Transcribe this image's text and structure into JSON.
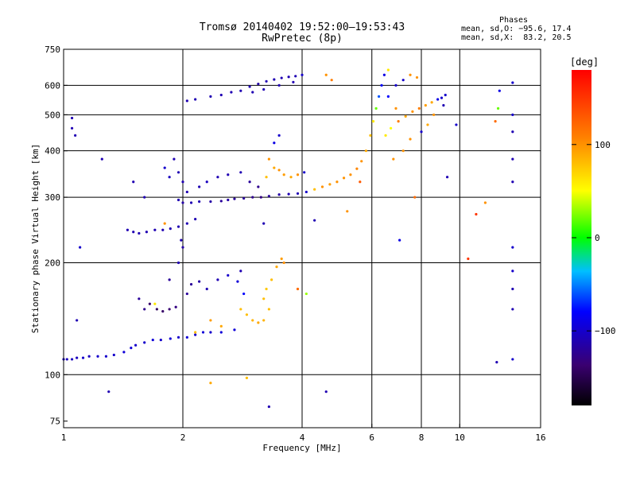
{
  "header": {
    "title": "Tromsø 20140402 19:52:00–19:53:43",
    "subtitle": "RwPretec (8p)"
  },
  "phase_info": {
    "heading": "Phases",
    "line1": "mean, sd,O: −95.6, 17.4",
    "line2": "mean, sd,X:  83.2, 20.5"
  },
  "colorbar": {
    "unit": "[deg]",
    "ticks": [
      "100",
      "0",
      "−100"
    ],
    "tick_values": [
      100,
      0,
      -100
    ],
    "range": [
      -180,
      180
    ]
  },
  "chart_data": {
    "type": "scatter",
    "title": "Tromsø 20140402 19:52:00–19:53:43",
    "subtitle": "RwPretec (8p)",
    "xlabel": "Frequency [MHz]",
    "ylabel": "Stationary phase Virtual Height [km]",
    "xscale": "log",
    "yscale": "log",
    "xlim": [
      1,
      16
    ],
    "ylim": [
      72,
      750
    ],
    "xticks": [
      1,
      2,
      4,
      6,
      8,
      10,
      16
    ],
    "xtick_labels": [
      "1",
      "2",
      "4",
      "6",
      "8",
      "10",
      "16"
    ],
    "yticks": [
      75,
      100,
      200,
      300,
      400,
      500,
      600,
      750
    ],
    "ytick_labels": [
      "75",
      "100",
      "200",
      "300",
      "400",
      "500",
      "600",
      "750"
    ],
    "x_gridlines": [
      2,
      4,
      6,
      8,
      10
    ],
    "y_gridlines": [
      100,
      200,
      300,
      400,
      500,
      600
    ],
    "grid": true,
    "color_scale": "phase [deg], rainbow from black (−180) to red (+180)",
    "series": [
      {
        "points": [
          [
            1.0,
            110,
            -105
          ],
          [
            1.02,
            110,
            -105
          ],
          [
            1.05,
            110,
            -105
          ],
          [
            1.08,
            111,
            -105
          ],
          [
            1.12,
            111,
            -100
          ],
          [
            1.16,
            112,
            -105
          ],
          [
            1.22,
            112,
            -100
          ],
          [
            1.28,
            112,
            -100
          ],
          [
            1.34,
            113,
            -100
          ],
          [
            1.42,
            115,
            -95
          ],
          [
            1.48,
            118,
            -95
          ],
          [
            1.52,
            120,
            -100
          ],
          [
            1.6,
            122,
            -100
          ],
          [
            1.68,
            124,
            -95
          ],
          [
            1.76,
            124,
            -100
          ],
          [
            1.86,
            125,
            -95
          ],
          [
            1.95,
            126,
            -100
          ],
          [
            2.05,
            126,
            -95
          ],
          [
            2.15,
            128,
            -100
          ],
          [
            2.25,
            130,
            -95
          ],
          [
            2.35,
            130,
            -100
          ],
          [
            2.5,
            130,
            -95
          ],
          [
            2.7,
            132,
            -95
          ],
          [
            1.55,
            160,
            -120
          ],
          [
            1.6,
            150,
            -125
          ],
          [
            1.65,
            155,
            -140
          ],
          [
            1.72,
            150,
            -145
          ],
          [
            1.78,
            148,
            -140
          ],
          [
            1.85,
            150,
            -135
          ],
          [
            1.92,
            152,
            -130
          ],
          [
            2.05,
            165,
            -120
          ],
          [
            2.1,
            175,
            -120
          ],
          [
            2.2,
            178,
            -115
          ],
          [
            2.3,
            170,
            -110
          ],
          [
            2.45,
            180,
            -110
          ],
          [
            2.6,
            185,
            -100
          ],
          [
            2.75,
            178,
            -95
          ],
          [
            2.85,
            165,
            -80
          ],
          [
            1.85,
            180,
            -120
          ],
          [
            1.95,
            200,
            -110
          ],
          [
            2.0,
            220,
            -115
          ],
          [
            1.98,
            230,
            -110
          ],
          [
            2.8,
            150,
            80
          ],
          [
            2.9,
            145,
            80
          ],
          [
            3.0,
            140,
            85
          ],
          [
            3.1,
            138,
            90
          ],
          [
            3.2,
            140,
            85
          ],
          [
            3.3,
            150,
            80
          ],
          [
            3.2,
            160,
            80
          ],
          [
            3.25,
            170,
            75
          ],
          [
            3.35,
            180,
            80
          ],
          [
            3.45,
            195,
            90
          ],
          [
            3.55,
            205,
            95
          ],
          [
            3.6,
            200,
            100
          ],
          [
            2.5,
            135,
            90
          ],
          [
            2.35,
            140,
            95
          ],
          [
            2.15,
            130,
            80
          ],
          [
            1.45,
            245,
            -110
          ],
          [
            1.5,
            242,
            -110
          ],
          [
            1.55,
            240,
            -110
          ],
          [
            1.62,
            242,
            -110
          ],
          [
            1.7,
            245,
            -110
          ],
          [
            1.78,
            245,
            -110
          ],
          [
            1.86,
            247,
            -110
          ],
          [
            1.95,
            250,
            -110
          ],
          [
            2.05,
            255,
            -110
          ],
          [
            2.15,
            262,
            -110
          ],
          [
            1.95,
            295,
            -110
          ],
          [
            2.0,
            290,
            -115
          ],
          [
            2.1,
            290,
            -110
          ],
          [
            2.2,
            292,
            -110
          ],
          [
            2.35,
            292,
            -115
          ],
          [
            2.5,
            293,
            -120
          ],
          [
            2.6,
            295,
            -115
          ],
          [
            2.7,
            297,
            -120
          ],
          [
            2.85,
            298,
            -120
          ],
          [
            3.0,
            300,
            -125
          ],
          [
            3.15,
            300,
            -130
          ],
          [
            3.3,
            302,
            -120
          ],
          [
            3.5,
            305,
            -115
          ],
          [
            3.7,
            306,
            -110
          ],
          [
            3.9,
            307,
            -110
          ],
          [
            4.1,
            310,
            -100
          ],
          [
            4.3,
            315,
            80
          ],
          [
            4.5,
            320,
            100
          ],
          [
            4.7,
            325,
            95
          ],
          [
            4.9,
            330,
            100
          ],
          [
            5.1,
            338,
            100
          ],
          [
            5.3,
            345,
            100
          ],
          [
            5.5,
            358,
            105
          ],
          [
            5.65,
            375,
            100
          ],
          [
            5.8,
            400,
            90
          ],
          [
            5.95,
            440,
            80
          ],
          [
            6.05,
            480,
            60
          ],
          [
            6.15,
            520,
            20
          ],
          [
            6.25,
            560,
            -60
          ],
          [
            6.35,
            600,
            -80
          ],
          [
            6.45,
            640,
            -90
          ],
          [
            6.6,
            660,
            60
          ],
          [
            1.9,
            380,
            -110
          ],
          [
            1.95,
            350,
            -110
          ],
          [
            2.0,
            330,
            -110
          ],
          [
            2.05,
            310,
            -110
          ],
          [
            1.85,
            340,
            -105
          ],
          [
            1.8,
            360,
            -100
          ],
          [
            2.2,
            320,
            -110
          ],
          [
            2.3,
            330,
            -105
          ],
          [
            2.45,
            340,
            -110
          ],
          [
            2.6,
            345,
            -110
          ],
          [
            2.8,
            350,
            -110
          ],
          [
            2.95,
            330,
            -120
          ],
          [
            3.1,
            320,
            -125
          ],
          [
            3.25,
            340,
            80
          ],
          [
            3.4,
            360,
            90
          ],
          [
            3.5,
            355,
            100
          ],
          [
            3.6,
            345,
            95
          ],
          [
            3.75,
            340,
            90
          ],
          [
            3.9,
            345,
            100
          ],
          [
            4.05,
            350,
            -100
          ],
          [
            3.4,
            420,
            -90
          ],
          [
            3.5,
            440,
            -100
          ],
          [
            3.3,
            380,
            100
          ],
          [
            2.05,
            545,
            -110
          ],
          [
            2.15,
            550,
            -110
          ],
          [
            2.35,
            560,
            -110
          ],
          [
            2.5,
            565,
            -110
          ],
          [
            2.65,
            575,
            -110
          ],
          [
            2.8,
            580,
            -110
          ],
          [
            2.95,
            595,
            -110
          ],
          [
            3.1,
            605,
            -115
          ],
          [
            3.25,
            615,
            -110
          ],
          [
            3.4,
            622,
            -110
          ],
          [
            3.55,
            628,
            -110
          ],
          [
            3.7,
            632,
            -110
          ],
          [
            3.85,
            635,
            -110
          ],
          [
            4.0,
            640,
            -100
          ],
          [
            4.6,
            640,
            100
          ],
          [
            4.75,
            620,
            110
          ],
          [
            3.0,
            575,
            -110
          ],
          [
            3.2,
            585,
            -110
          ],
          [
            3.5,
            600,
            -110
          ],
          [
            3.8,
            612,
            -110
          ],
          [
            7.0,
            480,
            110
          ],
          [
            7.3,
            495,
            90
          ],
          [
            7.6,
            510,
            100
          ],
          [
            7.9,
            520,
            110
          ],
          [
            8.2,
            530,
            95
          ],
          [
            8.5,
            540,
            90
          ],
          [
            8.8,
            550,
            -90
          ],
          [
            9.0,
            555,
            -100
          ],
          [
            9.2,
            565,
            -100
          ],
          [
            9.1,
            530,
            -110
          ],
          [
            8.6,
            500,
            100
          ],
          [
            8.3,
            470,
            90
          ],
          [
            8.0,
            450,
            -100
          ],
          [
            7.5,
            430,
            100
          ],
          [
            7.2,
            400,
            100
          ],
          [
            6.8,
            380,
            100
          ],
          [
            6.9,
            600,
            -100
          ],
          [
            7.2,
            620,
            -100
          ],
          [
            7.5,
            640,
            100
          ],
          [
            7.8,
            630,
            100
          ],
          [
            6.5,
            440,
            60
          ],
          [
            6.7,
            460,
            50
          ],
          [
            6.9,
            520,
            100
          ],
          [
            6.6,
            560,
            -80
          ],
          [
            13.6,
            610,
            -100
          ],
          [
            13.6,
            500,
            -100
          ],
          [
            13.6,
            450,
            -110
          ],
          [
            13.6,
            380,
            -110
          ],
          [
            13.6,
            330,
            -110
          ],
          [
            13.6,
            220,
            -100
          ],
          [
            13.6,
            190,
            -100
          ],
          [
            13.6,
            170,
            -110
          ],
          [
            13.6,
            150,
            -110
          ],
          [
            13.6,
            110,
            -100
          ],
          [
            12.6,
            580,
            -90
          ],
          [
            12.5,
            520,
            20
          ],
          [
            12.3,
            480,
            120
          ],
          [
            1.05,
            460,
            -110
          ],
          [
            1.05,
            490,
            -110
          ],
          [
            1.07,
            440,
            -110
          ],
          [
            1.25,
            380,
            -110
          ],
          [
            1.5,
            330,
            -110
          ],
          [
            1.6,
            300,
            -110
          ],
          [
            1.1,
            220,
            -100
          ],
          [
            1.08,
            140,
            -110
          ],
          [
            1.3,
            90,
            -110
          ],
          [
            1.7,
            155,
            60
          ],
          [
            2.35,
            95,
            90
          ],
          [
            2.8,
            190,
            -110
          ],
          [
            2.9,
            98,
            80
          ],
          [
            3.3,
            82,
            -110
          ],
          [
            4.1,
            165,
            30
          ],
          [
            4.6,
            90,
            -110
          ],
          [
            4.3,
            260,
            -110
          ],
          [
            5.2,
            275,
            100
          ],
          [
            5.6,
            330,
            130
          ],
          [
            7.05,
            230,
            -90
          ],
          [
            7.7,
            300,
            120
          ],
          [
            9.3,
            340,
            -110
          ],
          [
            9.8,
            470,
            -100
          ],
          [
            10.5,
            205,
            150
          ],
          [
            12.4,
            108,
            -110
          ],
          [
            11.6,
            290,
            100
          ],
          [
            11.0,
            270,
            150
          ],
          [
            3.9,
            170,
            120
          ],
          [
            3.2,
            255,
            -110
          ],
          [
            1.8,
            255,
            100
          ]
        ]
      }
    ]
  }
}
